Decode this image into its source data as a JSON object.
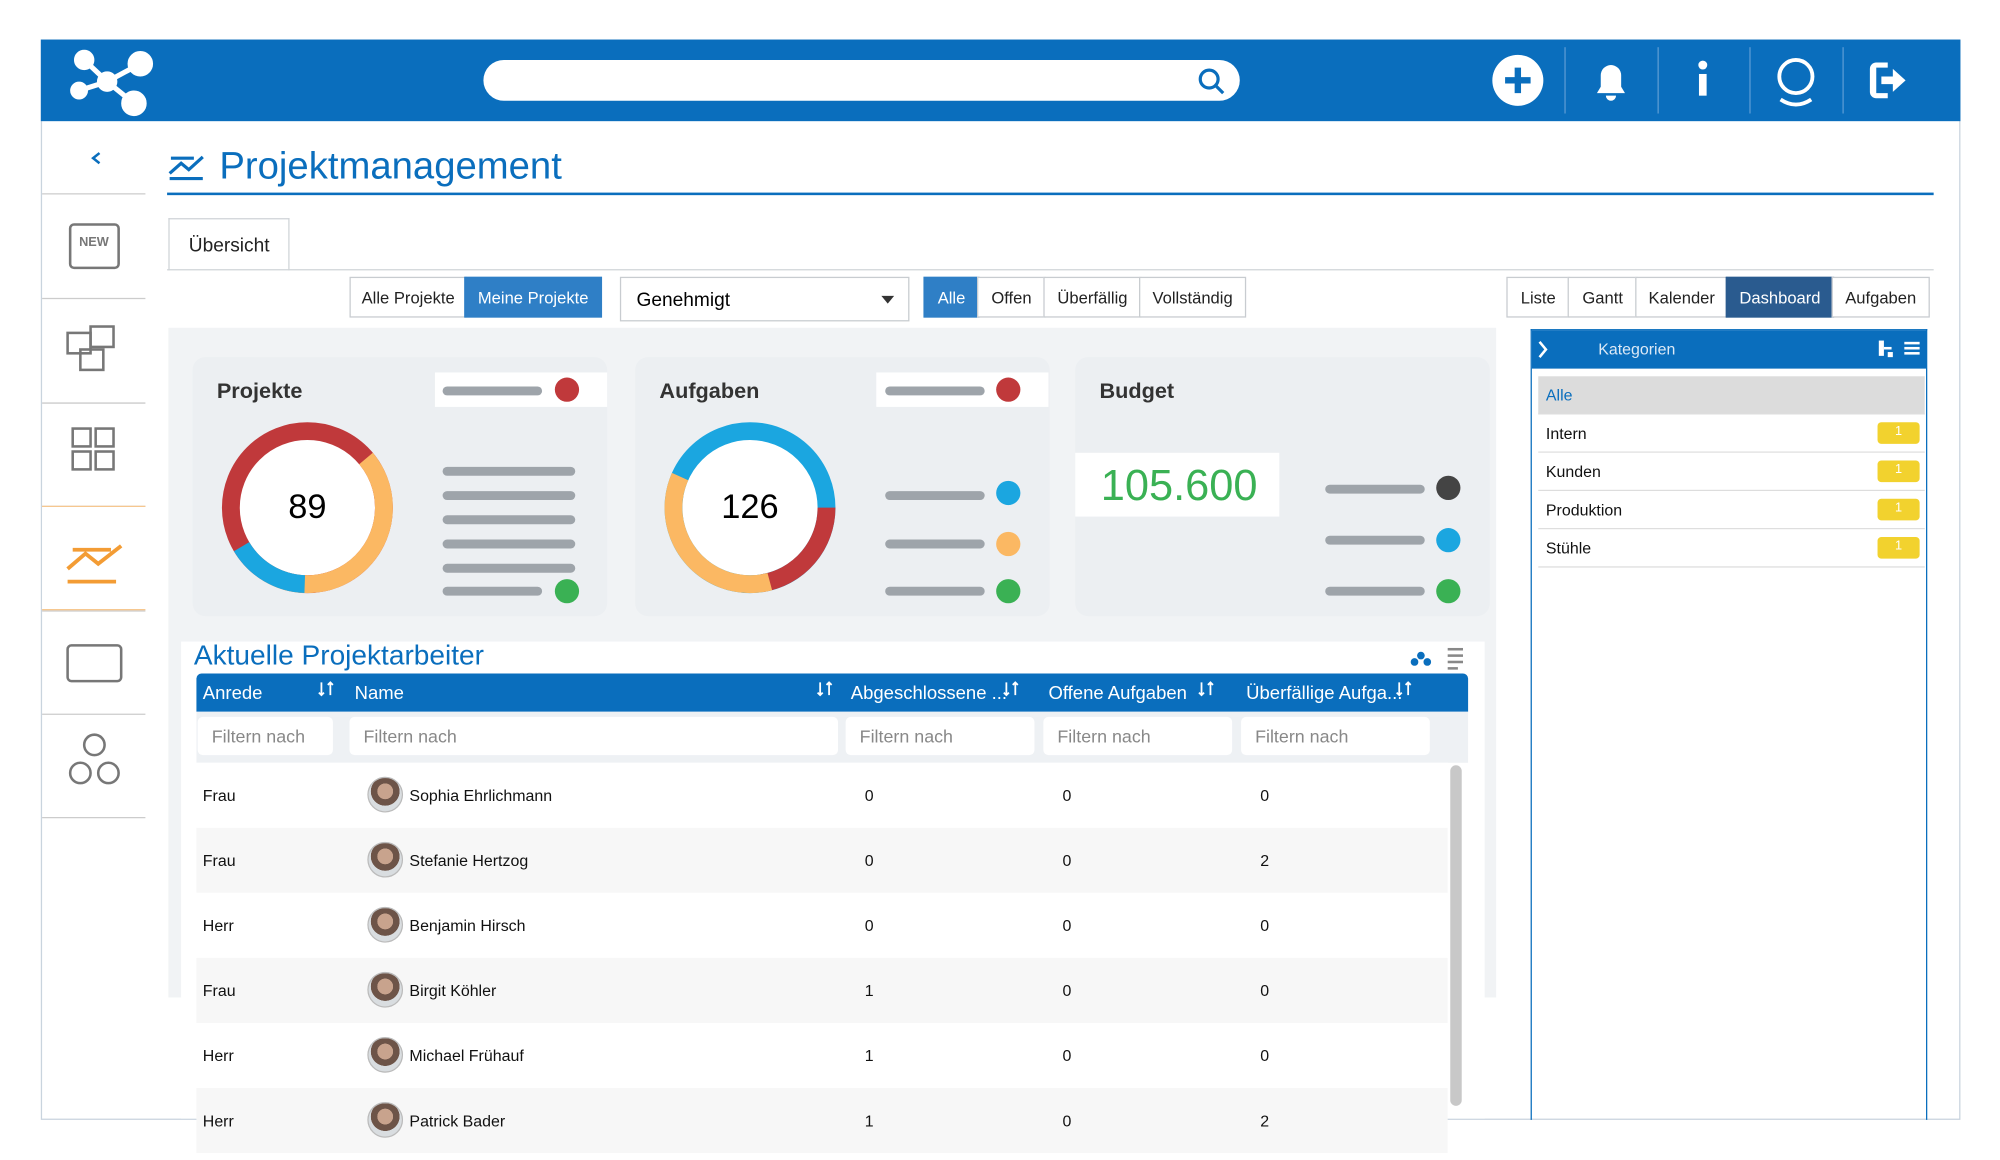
{
  "header": {
    "title": "Projektmanagement",
    "tab": "Übersicht"
  },
  "filters": {
    "scope": [
      "Alle Projekte",
      "Meine Projekte"
    ],
    "status_select": "Genehmigt",
    "status": [
      "Alle",
      "Offen",
      "Überfällig",
      "Vollständig"
    ],
    "views": [
      "Liste",
      "Gantt",
      "Kalender",
      "Dashboard",
      "Aufgaben"
    ]
  },
  "cards": [
    {
      "title": "Projekte",
      "value": "89"
    },
    {
      "title": "Aufgaben",
      "value": "126"
    },
    {
      "title": "Budget",
      "value": "105.600"
    }
  ],
  "table": {
    "title": "Aktuelle Projektarbeiter",
    "columns": [
      "Anrede",
      "Name",
      "Abgeschlossene ...",
      "Offene Aufgaben",
      "Überfällige Aufga..."
    ],
    "filter_placeholder": "Filtern nach",
    "rows": [
      [
        "Frau",
        "Sophia Ehrlichmann",
        "0",
        "0",
        "0"
      ],
      [
        "Frau",
        "Stefanie Hertzog",
        "0",
        "0",
        "2"
      ],
      [
        "Herr",
        "Benjamin Hirsch",
        "0",
        "0",
        "0"
      ],
      [
        "Frau",
        "Birgit Köhler",
        "1",
        "0",
        "0"
      ],
      [
        "Herr",
        "Michael Frühauf",
        "1",
        "0",
        "0"
      ],
      [
        "Herr",
        "Patrick Bader",
        "1",
        "0",
        "2"
      ]
    ]
  },
  "categories": {
    "title": "Kategorien",
    "items": [
      {
        "name": "Alle"
      },
      {
        "name": "Intern",
        "count": "1"
      },
      {
        "name": "Kunden",
        "count": "1"
      },
      {
        "name": "Produktion",
        "count": "1"
      },
      {
        "name": "Stühle",
        "count": "1"
      }
    ]
  }
}
